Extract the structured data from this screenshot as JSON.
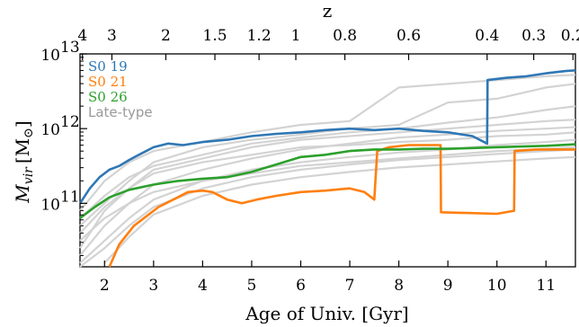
{
  "chart_data": {
    "type": "line",
    "xlabel": "Age of Univ. [Gyr]",
    "ylabel_main": "M",
    "ylabel_sub": "vir",
    "ylabel_unit": "[M",
    "ylabel_unit_close": "]",
    "ylabel_unit_symbol": "⊙",
    "top_axis_label": "z",
    "xlim": [
      1.5,
      11.6
    ],
    "ylim_log10": [
      10.15,
      13.0
    ],
    "x_ticks": [
      "2",
      "3",
      "4",
      "5",
      "6",
      "7",
      "8",
      "9",
      "10",
      "11"
    ],
    "y_ticks": [
      {
        "base": "10",
        "exp": "11",
        "logv": 11
      },
      {
        "base": "10",
        "exp": "12",
        "logv": 12
      },
      {
        "base": "10",
        "exp": "13",
        "logv": 13
      }
    ],
    "top_ticks": [
      {
        "label": "4",
        "age": 1.55
      },
      {
        "label": "3",
        "age": 2.15
      },
      {
        "label": "2",
        "age": 3.25
      },
      {
        "label": "1.5",
        "age": 4.25
      },
      {
        "label": "1.2",
        "age": 5.15
      },
      {
        "label": "1",
        "age": 5.9
      },
      {
        "label": "0.8",
        "age": 6.9
      },
      {
        "label": "0.6",
        "age": 8.2
      },
      {
        "label": "0.4",
        "age": 9.8
      },
      {
        "label": "0.3",
        "age": 10.75
      },
      {
        "label": "0.2",
        "age": 11.55
      }
    ],
    "legend": [
      {
        "label": "S0 19",
        "color": "#2f77b4"
      },
      {
        "label": "S0 21",
        "color": "#ff7f0e"
      },
      {
        "label": "S0 26",
        "color": "#2ca02c"
      },
      {
        "label": "Late-type",
        "color": "#999999"
      }
    ],
    "series": [
      {
        "name": "S0 19",
        "color": "#2f77b4",
        "x": [
          1.5,
          1.7,
          1.9,
          2.1,
          2.3,
          2.5,
          2.7,
          3.0,
          3.3,
          3.6,
          4.0,
          4.5,
          5.0,
          5.5,
          6.0,
          6.5,
          7.0,
          7.5,
          8.0,
          8.5,
          9.0,
          9.5,
          9.8,
          9.81,
          10.2,
          10.6,
          11.0,
          11.4,
          11.6
        ],
        "logy": [
          11.0,
          11.2,
          11.35,
          11.45,
          11.5,
          11.58,
          11.65,
          11.75,
          11.8,
          11.78,
          11.82,
          11.85,
          11.9,
          11.93,
          11.95,
          11.98,
          12.0,
          11.98,
          12.0,
          11.97,
          11.95,
          11.9,
          11.8,
          12.65,
          12.68,
          12.7,
          12.74,
          12.77,
          12.78
        ]
      },
      {
        "name": "S0 21",
        "color": "#ff7f0e",
        "x": [
          2.1,
          2.3,
          2.6,
          2.9,
          3.1,
          3.4,
          3.7,
          4.0,
          4.2,
          4.5,
          4.8,
          5.1,
          5.5,
          6.0,
          6.5,
          7.0,
          7.3,
          7.5,
          7.56,
          7.8,
          8.2,
          8.6,
          8.85,
          8.86,
          9.4,
          10.0,
          10.35,
          10.36,
          10.8,
          11.2,
          11.6
        ],
        "logy": [
          10.15,
          10.45,
          10.7,
          10.85,
          10.95,
          11.05,
          11.15,
          11.17,
          11.15,
          11.05,
          11.0,
          11.05,
          11.1,
          11.15,
          11.17,
          11.2,
          11.15,
          11.05,
          11.7,
          11.75,
          11.78,
          11.78,
          11.78,
          10.88,
          10.87,
          10.86,
          10.9,
          11.7,
          11.72,
          11.72,
          11.72
        ]
      },
      {
        "name": "S0 26",
        "color": "#2ca02c",
        "x": [
          1.5,
          1.8,
          2.1,
          2.5,
          3.0,
          3.5,
          4.0,
          4.5,
          5.0,
          5.5,
          6.0,
          6.5,
          7.0,
          7.5,
          8.0,
          8.5,
          9.0,
          9.5,
          10.0,
          10.5,
          11.0,
          11.6
        ],
        "logy": [
          10.8,
          10.95,
          11.08,
          11.18,
          11.25,
          11.3,
          11.33,
          11.35,
          11.42,
          11.52,
          11.62,
          11.65,
          11.7,
          11.72,
          11.72,
          11.73,
          11.73,
          11.74,
          11.75,
          11.76,
          11.77,
          11.79
        ]
      },
      {
        "name": "Late-type",
        "color": "#d3d3d3",
        "x": [
          1.5,
          2.0,
          2.5,
          3.0,
          4.0,
          5.0,
          6.0,
          7.0,
          8.0,
          9.0,
          10.0,
          11.0,
          11.6
        ],
        "logy": [
          10.9,
          11.3,
          11.55,
          11.7,
          11.82,
          11.95,
          12.05,
          12.1,
          12.55,
          12.6,
          12.65,
          12.7,
          12.72
        ]
      },
      {
        "name": "Late-type",
        "color": "#d3d3d3",
        "x": [
          1.5,
          2.0,
          2.5,
          3.0,
          4.0,
          5.0,
          6.0,
          7.0,
          8.0,
          9.0,
          10.0,
          11.0,
          11.6
        ],
        "logy": [
          10.7,
          11.0,
          11.3,
          11.55,
          11.75,
          11.85,
          11.92,
          12.0,
          12.05,
          12.35,
          12.4,
          12.55,
          12.6
        ]
      },
      {
        "name": "Late-type",
        "color": "#d3d3d3",
        "x": [
          1.5,
          2.0,
          2.5,
          3.0,
          4.0,
          5.0,
          6.0,
          7.0,
          8.0,
          9.0,
          10.0,
          11.0,
          11.6
        ],
        "logy": [
          10.4,
          10.9,
          11.2,
          11.45,
          11.6,
          11.75,
          11.85,
          11.9,
          11.95,
          12.0,
          12.05,
          12.1,
          12.12
        ]
      },
      {
        "name": "Late-type",
        "color": "#d3d3d3",
        "x": [
          1.5,
          2.0,
          2.5,
          3.0,
          4.0,
          5.0,
          6.0,
          7.0,
          8.0,
          9.0,
          10.0,
          11.0,
          11.6
        ],
        "logy": [
          10.3,
          10.7,
          11.0,
          11.25,
          11.45,
          11.6,
          11.72,
          11.8,
          11.88,
          11.92,
          11.97,
          12.0,
          12.02
        ]
      },
      {
        "name": "Late-type",
        "color": "#d3d3d3",
        "x": [
          1.5,
          2.0,
          2.5,
          3.0,
          4.0,
          5.0,
          6.0,
          7.0,
          8.0,
          9.0,
          10.0,
          11.0,
          11.6
        ],
        "logy": [
          10.2,
          10.5,
          10.8,
          11.05,
          11.3,
          11.45,
          11.55,
          11.62,
          11.68,
          11.72,
          11.78,
          11.82,
          11.85
        ]
      },
      {
        "name": "Late-type",
        "color": "#d3d3d3",
        "x": [
          1.5,
          2.0,
          2.5,
          3.0,
          4.0,
          5.0,
          6.0,
          7.0,
          8.0,
          9.0,
          10.0,
          11.0,
          11.6
        ],
        "logy": [
          10.15,
          10.4,
          10.7,
          10.95,
          11.2,
          11.35,
          11.45,
          11.52,
          11.58,
          11.62,
          11.66,
          11.7,
          11.72
        ]
      },
      {
        "name": "Late-type",
        "color": "#d3d3d3",
        "x": [
          1.5,
          2.0,
          2.5,
          3.0,
          4.0,
          5.0,
          6.0,
          7.0,
          8.0,
          9.0,
          10.0,
          11.0,
          11.6
        ],
        "logy": [
          10.5,
          10.8,
          11.0,
          11.15,
          11.3,
          11.4,
          11.5,
          11.55,
          11.6,
          11.65,
          11.7,
          11.73,
          11.75
        ]
      },
      {
        "name": "Late-type",
        "color": "#d3d3d3",
        "x": [
          1.5,
          2.0,
          2.5,
          3.0,
          4.0,
          5.0,
          6.0,
          7.0,
          8.0,
          9.0,
          10.0,
          11.0,
          11.6
        ],
        "logy": [
          10.6,
          10.95,
          11.2,
          11.4,
          11.55,
          11.65,
          11.75,
          11.78,
          11.82,
          11.85,
          11.9,
          11.92,
          11.95
        ]
      },
      {
        "name": "Late-type",
        "color": "#d3d3d3",
        "x": [
          2.0,
          2.5,
          3.0,
          4.0,
          5.0,
          6.0,
          7.0,
          8.0,
          9.0,
          10.0,
          11.0,
          11.6
        ],
        "logy": [
          10.2,
          10.55,
          10.85,
          11.1,
          11.25,
          11.35,
          11.42,
          11.48,
          11.52,
          11.56,
          11.6,
          11.62
        ]
      },
      {
        "name": "Late-type",
        "color": "#d3d3d3",
        "x": [
          1.5,
          2.0,
          2.5,
          3.0,
          4.0,
          5.0,
          6.0,
          7.0,
          8.0,
          9.0,
          10.0,
          11.0,
          11.6
        ],
        "logy": [
          10.8,
          11.1,
          11.35,
          11.5,
          11.65,
          11.8,
          11.88,
          11.95,
          12.0,
          12.08,
          12.15,
          12.25,
          12.3
        ]
      }
    ]
  }
}
